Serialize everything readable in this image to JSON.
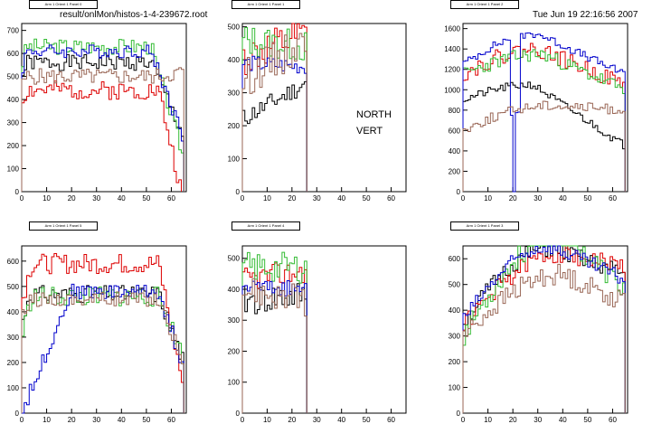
{
  "header": {
    "file_path": "result/onlMon/histos-1-4-239672.root",
    "timestamp": "Tue Jun 19 22:16:56 2007"
  },
  "overlay": {
    "line1": "NORTH",
    "line2": "VERT"
  },
  "colors": {
    "black": "#000000",
    "red": "#dd0000",
    "green": "#33bb33",
    "blue": "#0000cc",
    "brown": "#996655"
  },
  "chart_data": [
    {
      "type": "line",
      "title": "Arm 1 Orient 1 Panel 0",
      "xlim": [
        0,
        66
      ],
      "ylim": [
        0,
        730
      ],
      "xticks": [
        0,
        10,
        20,
        30,
        40,
        50,
        60
      ],
      "yticks": [
        0,
        100,
        200,
        300,
        400,
        500,
        600,
        700
      ],
      "grid": false,
      "series": [
        {
          "color": "black",
          "shape": "plateau",
          "x_end": 65,
          "level": 560,
          "rise_end": 2,
          "fall_start": 52,
          "start": 480,
          "end": 240,
          "noise": 35,
          "seed": 1
        },
        {
          "color": "red",
          "shape": "plateau",
          "x_end": 64,
          "level": 440,
          "rise_end": 2,
          "fall_start": 55,
          "start": 380,
          "end": 0,
          "noise": 40,
          "seed": 2
        },
        {
          "color": "green",
          "shape": "plateau",
          "x_end": 65,
          "level": 630,
          "rise_end": 2,
          "fall_start": 52,
          "start": 540,
          "end": 150,
          "noise": 35,
          "seed": 3
        },
        {
          "color": "blue",
          "shape": "plateau",
          "x_end": 65,
          "level": 610,
          "rise_end": 2,
          "fall_start": 52,
          "start": 520,
          "end": 230,
          "noise": 30,
          "seed": 4
        },
        {
          "color": "brown",
          "shape": "plateau",
          "x_end": 65,
          "level": 500,
          "rise_end": 2,
          "fall_start": 55,
          "start": 450,
          "end": 520,
          "noise": 35,
          "seed": 5
        }
      ]
    },
    {
      "type": "line",
      "title": "Arm 1 Orient 1 Panel 1",
      "xlim": [
        0,
        66
      ],
      "ylim": [
        0,
        510
      ],
      "xticks": [
        0,
        10,
        20,
        30,
        40,
        50,
        60
      ],
      "yticks": [
        0,
        100,
        200,
        300,
        400,
        500
      ],
      "grid": false,
      "series": [
        {
          "color": "black",
          "shape": "ramp",
          "x_end": 26,
          "start": 220,
          "end": 330,
          "noise": 30,
          "seed": 11
        },
        {
          "color": "red",
          "shape": "ramp",
          "x_end": 26,
          "start": 400,
          "end": 470,
          "noise": 60,
          "seed": 12
        },
        {
          "color": "green",
          "shape": "ramp",
          "x_end": 26,
          "start": 460,
          "end": 440,
          "noise": 50,
          "seed": 13
        },
        {
          "color": "blue",
          "shape": "ramp",
          "x_end": 26,
          "start": 390,
          "end": 380,
          "noise": 25,
          "seed": 14
        },
        {
          "color": "brown",
          "shape": "ramp",
          "x_end": 26,
          "start": 340,
          "end": 460,
          "noise": 60,
          "seed": 15
        }
      ]
    },
    {
      "type": "line",
      "title": "Arm 1 Orient 1 Panel 2",
      "xlim": [
        0,
        66
      ],
      "ylim": [
        0,
        1650
      ],
      "xticks": [
        0,
        10,
        20,
        30,
        40,
        50,
        60
      ],
      "yticks": [
        0,
        200,
        400,
        600,
        800,
        1000,
        1200,
        1400,
        1600
      ],
      "grid": false,
      "series": [
        {
          "color": "black",
          "shape": "wave",
          "x_end": 65,
          "start": 900,
          "peak": 1050,
          "peak_x": 28,
          "end": 450,
          "noise": 40,
          "seed": 21
        },
        {
          "color": "red",
          "shape": "wave",
          "x_end": 65,
          "start": 1150,
          "peak": 1400,
          "peak_x": 30,
          "end": 1050,
          "noise": 80,
          "seed": 22
        },
        {
          "color": "green",
          "shape": "wave",
          "x_end": 65,
          "start": 1150,
          "peak": 1350,
          "peak_x": 32,
          "end": 1000,
          "noise": 70,
          "seed": 23
        },
        {
          "color": "blue",
          "shape": "wave",
          "x_end": 65,
          "start": 1250,
          "peak": 1550,
          "peak_x": 30,
          "end": 1150,
          "noise": 40,
          "seed": 24,
          "dip_from": 19,
          "dip_to": 23
        },
        {
          "color": "brown",
          "shape": "wave",
          "x_end": 65,
          "start": 600,
          "peak": 850,
          "peak_x": 35,
          "end": 800,
          "noise": 50,
          "seed": 25
        }
      ]
    },
    {
      "type": "line",
      "title": "Arm 1 Orient 1 Panel 5",
      "xlim": [
        0,
        66
      ],
      "ylim": [
        0,
        660
      ],
      "xticks": [
        0,
        10,
        20,
        30,
        40,
        50,
        60
      ],
      "yticks": [
        0,
        100,
        200,
        300,
        400,
        500,
        600
      ],
      "grid": false,
      "series": [
        {
          "color": "black",
          "shape": "plateau",
          "x_end": 65,
          "level": 470,
          "rise_end": 3,
          "fall_start": 55,
          "start": 340,
          "end": 200,
          "noise": 35,
          "seed": 31
        },
        {
          "color": "red",
          "shape": "plateau",
          "x_end": 65,
          "level": 590,
          "rise_end": 4,
          "fall_start": 55,
          "start": 440,
          "end": 100,
          "noise": 40,
          "seed": 32
        },
        {
          "color": "green",
          "shape": "plateau",
          "x_end": 65,
          "level": 460,
          "rise_end": 4,
          "fall_start": 55,
          "start": 300,
          "end": 220,
          "noise": 40,
          "seed": 33
        },
        {
          "color": "blue",
          "shape": "plateau",
          "x_end": 65,
          "level": 480,
          "rise_end": 20,
          "fall_start": 55,
          "start": 0,
          "end": 180,
          "noise": 30,
          "seed": 34
        },
        {
          "color": "brown",
          "shape": "plateau",
          "x_end": 65,
          "level": 450,
          "rise_end": 4,
          "fall_start": 55,
          "start": 370,
          "end": 200,
          "noise": 30,
          "seed": 35
        }
      ]
    },
    {
      "type": "line",
      "title": "Arm 1 Orient 1 Panel 4",
      "xlim": [
        0,
        66
      ],
      "ylim": [
        0,
        540
      ],
      "xticks": [
        0,
        10,
        20,
        30,
        40,
        50,
        60
      ],
      "yticks": [
        0,
        100,
        200,
        300,
        400,
        500
      ],
      "grid": false,
      "series": [
        {
          "color": "black",
          "shape": "ramp",
          "x_end": 26,
          "start": 360,
          "end": 380,
          "noise": 50,
          "seed": 41
        },
        {
          "color": "red",
          "shape": "ramp",
          "x_end": 26,
          "start": 430,
          "end": 460,
          "noise": 40,
          "seed": 42
        },
        {
          "color": "green",
          "shape": "ramp",
          "x_end": 26,
          "start": 470,
          "end": 470,
          "noise": 50,
          "seed": 43
        },
        {
          "color": "blue",
          "shape": "ramp",
          "x_end": 26,
          "start": 410,
          "end": 400,
          "noise": 25,
          "seed": 44
        },
        {
          "color": "brown",
          "shape": "ramp",
          "x_end": 26,
          "start": 400,
          "end": 360,
          "noise": 50,
          "seed": 45
        }
      ]
    },
    {
      "type": "line",
      "title": "Arm 1 Orient 1 Panel 3",
      "xlim": [
        0,
        66
      ],
      "ylim": [
        0,
        650
      ],
      "xticks": [
        0,
        10,
        20,
        30,
        40,
        50,
        60
      ],
      "yticks": [
        0,
        100,
        200,
        300,
        400,
        500,
        600
      ],
      "grid": false,
      "series": [
        {
          "color": "black",
          "shape": "wave",
          "x_end": 65,
          "start": 350,
          "peak": 640,
          "peak_x": 35,
          "end": 540,
          "noise": 35,
          "seed": 51
        },
        {
          "color": "red",
          "shape": "wave",
          "x_end": 65,
          "start": 340,
          "peak": 620,
          "peak_x": 40,
          "end": 570,
          "noise": 35,
          "seed": 52
        },
        {
          "color": "green",
          "shape": "wave",
          "x_end": 65,
          "start": 300,
          "peak": 700,
          "peak_x": 40,
          "end": 480,
          "noise": 45,
          "seed": 53
        },
        {
          "color": "blue",
          "shape": "wave",
          "x_end": 65,
          "start": 360,
          "peak": 650,
          "peak_x": 35,
          "end": 520,
          "noise": 30,
          "seed": 54
        },
        {
          "color": "brown",
          "shape": "wave",
          "x_end": 65,
          "start": 300,
          "peak": 540,
          "peak_x": 40,
          "end": 430,
          "noise": 40,
          "seed": 55
        }
      ]
    }
  ]
}
